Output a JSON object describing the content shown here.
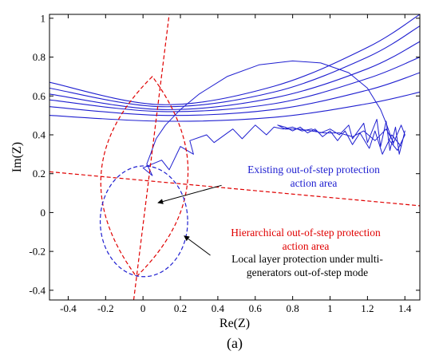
{
  "chart_data": {
    "type": "line",
    "xlabel": "Re(Z)",
    "ylabel": "Im(Z)",
    "panel_label": "(a)",
    "xlim": [
      -0.5,
      1.48
    ],
    "ylim": [
      -0.45,
      1.02
    ],
    "xticks": [
      "-0.4",
      "-0.2",
      "0",
      "0.2",
      "0.4",
      "0.6",
      "0.8",
      "1",
      "1.2",
      "1.4"
    ],
    "yticks": [
      "-0.4",
      "-0.2",
      "0",
      "0.2",
      "0.4",
      "0.6",
      "0.8",
      "1"
    ],
    "grid": false,
    "colors": {
      "trajectory": "#1f1fd0",
      "hierarchical": "#e00000",
      "existing": "#1f1fd0"
    },
    "annotations": [
      {
        "lines": [
          "Existing out-of-step protection",
          "action area"
        ],
        "color": "#1f1fd0",
        "target": [
          0.08,
          0.05
        ],
        "anchor": [
          0.42,
          0.14
        ]
      },
      {
        "lines": [
          "Hierarchical out-of-step protection",
          "action area"
        ],
        "color": "#e00000"
      },
      {
        "lines": [
          "Local layer protection under multi-",
          "generators out-of-step mode"
        ],
        "color": "#000000",
        "target": [
          0.22,
          -0.12
        ],
        "anchor": [
          0.36,
          -0.22
        ]
      }
    ],
    "series": [
      {
        "kind": "envelope_arcs",
        "color": "#1f1fd0",
        "arcs": [
          [
            [
              -0.5,
              0.67
            ],
            [
              0.1,
              0.555
            ],
            [
              0.7,
              0.65
            ],
            [
              1.2,
              0.85
            ],
            [
              1.48,
              1.02
            ]
          ],
          [
            [
              -0.5,
              0.64
            ],
            [
              0.1,
              0.545
            ],
            [
              0.7,
              0.62
            ],
            [
              1.2,
              0.8
            ],
            [
              1.48,
              0.96
            ]
          ],
          [
            [
              -0.5,
              0.61
            ],
            [
              0.1,
              0.53
            ],
            [
              0.7,
              0.59
            ],
            [
              1.2,
              0.74
            ],
            [
              1.48,
              0.88
            ]
          ],
          [
            [
              -0.5,
              0.58
            ],
            [
              0.1,
              0.52
            ],
            [
              0.7,
              0.56
            ],
            [
              1.2,
              0.69
            ],
            [
              1.48,
              0.8
            ]
          ],
          [
            [
              -0.5,
              0.545
            ],
            [
              0.1,
              0.5
            ],
            [
              0.7,
              0.53
            ],
            [
              1.2,
              0.63
            ],
            [
              1.48,
              0.72
            ]
          ],
          [
            [
              -0.5,
              0.5
            ],
            [
              0.1,
              0.47
            ],
            [
              0.7,
              0.49
            ],
            [
              1.2,
              0.56
            ],
            [
              1.48,
              0.62
            ]
          ]
        ]
      },
      {
        "kind": "trajectory",
        "color": "#1f1fd0",
        "points": [
          [
            1.34,
            0.35
          ],
          [
            1.3,
            0.46
          ],
          [
            1.27,
            0.53
          ],
          [
            1.2,
            0.64
          ],
          [
            1.1,
            0.72
          ],
          [
            0.95,
            0.77
          ],
          [
            0.8,
            0.78
          ],
          [
            0.62,
            0.76
          ],
          [
            0.45,
            0.7
          ],
          [
            0.3,
            0.61
          ],
          [
            0.2,
            0.53
          ],
          [
            0.12,
            0.45
          ],
          [
            0.07,
            0.38
          ],
          [
            0.04,
            0.3
          ],
          [
            0.02,
            0.25
          ],
          [
            0.05,
            0.19
          ],
          [
            0.0,
            0.23
          ],
          [
            0.1,
            0.27
          ],
          [
            0.14,
            0.22
          ],
          [
            0.2,
            0.34
          ],
          [
            0.27,
            0.3
          ],
          [
            0.25,
            0.37
          ],
          [
            0.34,
            0.4
          ],
          [
            0.38,
            0.36
          ],
          [
            0.48,
            0.43
          ],
          [
            0.53,
            0.38
          ],
          [
            0.6,
            0.45
          ],
          [
            0.66,
            0.4
          ],
          [
            0.7,
            0.44
          ],
          [
            0.75,
            0.43
          ],
          [
            0.8,
            0.44
          ],
          [
            0.85,
            0.42
          ],
          [
            0.9,
            0.43
          ],
          [
            0.95,
            0.41
          ],
          [
            1.0,
            0.43
          ],
          [
            1.05,
            0.4
          ],
          [
            1.1,
            0.45
          ],
          [
            1.12,
            0.38
          ],
          [
            1.18,
            0.46
          ],
          [
            1.2,
            0.36
          ],
          [
            1.25,
            0.48
          ],
          [
            1.27,
            0.34
          ],
          [
            1.3,
            0.47
          ],
          [
            1.32,
            0.32
          ],
          [
            1.35,
            0.44
          ],
          [
            1.37,
            0.3
          ],
          [
            1.4,
            0.42
          ],
          [
            1.38,
            0.34
          ],
          [
            1.33,
            0.4
          ],
          [
            1.28,
            0.3
          ],
          [
            1.24,
            0.42
          ],
          [
            1.21,
            0.33
          ],
          [
            1.16,
            0.41
          ],
          [
            1.12,
            0.35
          ],
          [
            1.08,
            0.42
          ],
          [
            1.04,
            0.37
          ],
          [
            1.0,
            0.42
          ],
          [
            0.96,
            0.39
          ],
          [
            0.92,
            0.43
          ],
          [
            0.88,
            0.41
          ],
          [
            0.84,
            0.44
          ],
          [
            0.8,
            0.42
          ],
          [
            0.76,
            0.44
          ],
          [
            0.72,
            0.45
          ],
          [
            0.76,
            0.43
          ],
          [
            0.83,
            0.43
          ],
          [
            0.9,
            0.42
          ],
          [
            0.97,
            0.41
          ],
          [
            1.05,
            0.41
          ],
          [
            1.12,
            0.39
          ],
          [
            1.18,
            0.42
          ],
          [
            1.24,
            0.37
          ],
          [
            1.3,
            0.43
          ],
          [
            1.34,
            0.36
          ],
          [
            1.38,
            0.45
          ],
          [
            1.4,
            0.4
          ],
          [
            1.36,
            0.32
          ],
          [
            1.31,
            0.38
          ]
        ]
      },
      {
        "kind": "line",
        "name_hidden": true,
        "color": "#e00000",
        "dash": true,
        "points": [
          [
            -0.05,
            -0.45
          ],
          [
            0.14,
            1.02
          ]
        ]
      },
      {
        "kind": "line",
        "color": "#e00000",
        "dash": true,
        "points": [
          [
            -0.5,
            0.21
          ],
          [
            1.48,
            0.035
          ]
        ]
      },
      {
        "kind": "lens",
        "color": "#e00000",
        "dash": true,
        "points": [
          [
            -0.035,
            -0.33
          ],
          [
            0.05,
            0.7
          ]
        ],
        "bulge": 0.32
      },
      {
        "kind": "circle",
        "color": "#1f1fd0",
        "dash": true,
        "center": [
          0.005,
          -0.045
        ],
        "radius": 0.285
      }
    ]
  }
}
